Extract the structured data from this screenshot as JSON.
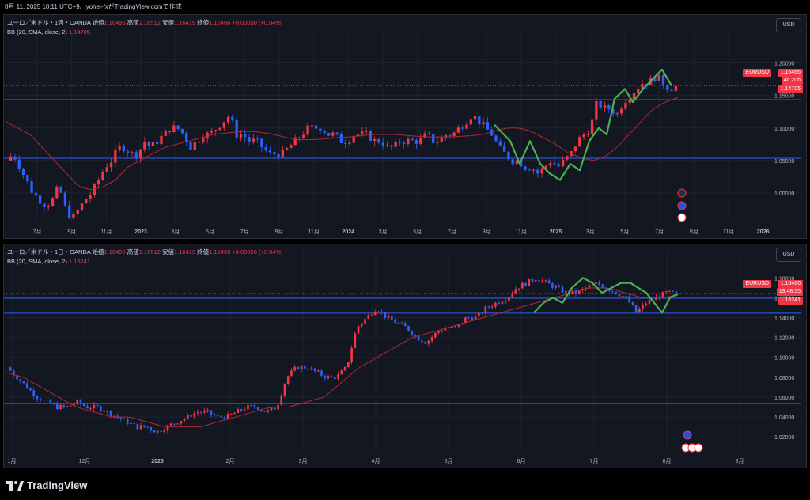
{
  "header": {
    "text": "8月 11, 2025 10:11 UTC+9、yohei-fxがTradingView.comで作成"
  },
  "brand": {
    "name": "TradingView",
    "icon": "tradingview-logo-icon"
  },
  "colors": {
    "up": "#f23645",
    "down": "#2962ff",
    "bb_mid": "#b22833",
    "level": "#2962ff",
    "wave": "#4caf50"
  },
  "panes": [
    {
      "symbol_line": "ユーロ／米ドル・1週・OANDA",
      "open_label": "始値",
      "open": "1.16496",
      "high_label": "高値",
      "high": "1.16512",
      "low_label": "安値",
      "low": "1.16419",
      "close_label": "終値",
      "close": "1.16466",
      "change": "+0.00050 (+0.04%)",
      "bb_label": "BB (20, SMA, close, 2)",
      "bb_value": "1.14705",
      "currency": "USD",
      "price_ticks": [
        "1.20000",
        "1.15000",
        "1.10000",
        "1.05000",
        "1.00000"
      ],
      "time_ticks": [
        "7月",
        "9月",
        "11月",
        "2023",
        "3月",
        "5月",
        "7月",
        "9月",
        "11月",
        "2024",
        "3月",
        "5月",
        "7月",
        "9月",
        "11月",
        "2025",
        "3月",
        "5月",
        "7月",
        "9月",
        "11月",
        "2026"
      ],
      "badges": {
        "symbol": "EURUSD",
        "price": "1.16466",
        "countdown": "4d 20h",
        "bb": "1.14705"
      },
      "icons": [
        "flash-event-icon",
        "eu-flag-icon",
        "us-flag-icon"
      ],
      "chart_data": {
        "type": "candlestick",
        "ylim": [
          0.955,
          1.225
        ],
        "levels": [
          1.1435,
          1.0535
        ],
        "close_path": [
          1.05,
          1.06,
          1.04,
          1.02,
          1.0,
          0.99,
          0.98,
          0.99,
          1.01,
          0.975,
          0.96,
          0.975,
          0.99,
          1.0,
          1.02,
          1.04,
          1.05,
          1.07,
          1.07,
          1.06,
          1.06,
          1.08,
          1.07,
          1.08,
          1.09,
          1.1,
          1.1,
          1.09,
          1.07,
          1.08,
          1.09,
          1.09,
          1.1,
          1.11,
          1.12,
          1.09,
          1.09,
          1.08,
          1.08,
          1.07,
          1.06,
          1.06,
          1.06,
          1.07,
          1.08,
          1.09,
          1.1,
          1.1,
          1.1,
          1.09,
          1.09,
          1.08,
          1.08,
          1.09,
          1.09,
          1.09,
          1.08,
          1.08,
          1.07,
          1.07,
          1.08,
          1.08,
          1.08,
          1.08,
          1.09,
          1.08,
          1.08,
          1.09,
          1.09,
          1.1,
          1.11,
          1.12,
          1.11,
          1.1,
          1.09,
          1.07,
          1.06,
          1.05,
          1.05,
          1.04,
          1.04,
          1.03,
          1.04,
          1.05,
          1.04,
          1.05,
          1.06,
          1.08,
          1.09,
          1.1,
          1.14,
          1.13,
          1.13,
          1.12,
          1.14,
          1.15,
          1.16,
          1.17,
          1.17,
          1.18,
          1.17,
          1.16,
          1.16465
        ],
        "bb_mid_path": [
          1.11,
          1.1,
          1.09,
          1.07,
          1.05,
          1.03,
          1.01,
          1.005,
          1.01,
          1.02,
          1.04,
          1.05,
          1.06,
          1.07,
          1.075,
          1.08,
          1.085,
          1.09,
          1.092,
          1.094,
          1.095,
          1.093,
          1.09,
          1.085,
          1.082,
          1.082,
          1.083,
          1.085,
          1.086,
          1.088,
          1.09,
          1.09,
          1.09,
          1.088,
          1.087,
          1.086,
          1.086,
          1.087,
          1.088,
          1.09,
          1.095,
          1.1,
          1.1,
          1.095,
          1.085,
          1.075,
          1.062,
          1.055,
          1.05,
          1.055,
          1.07,
          1.09,
          1.11,
          1.13,
          1.14,
          1.14705
        ]
      }
    },
    {
      "symbol_line": "ユーロ／米ドル・1日・OANDA",
      "open_label": "始値",
      "open": "1.16496",
      "high_label": "高値",
      "high": "1.16512",
      "low_label": "安値",
      "low": "1.16419",
      "close_label": "終値",
      "close": "1.16466",
      "change": "+0.00050 (+0.04%)",
      "bb_label": "BB (20, SMA, close, 2)",
      "bb_value": "1.16241",
      "currency": "USD",
      "price_ticks": [
        "1.18000",
        "1.16000",
        "1.14000",
        "1.12000",
        "1.10000",
        "1.08000",
        "1.06000",
        "1.04000",
        "1.02000"
      ],
      "time_ticks": [
        "1月",
        "12月",
        "2025",
        "2月",
        "3月",
        "4月",
        "5月",
        "6月",
        "7月",
        "8月",
        "9月"
      ],
      "badges": {
        "symbol": "EURUSD",
        "price": "1.16466",
        "countdown": "19:48:55",
        "bb": "1.16241"
      },
      "icons": [
        "eu-flag-icon",
        "us-flag-icon",
        "us-flag-icon",
        "us-flag-icon"
      ],
      "chart_data": {
        "type": "candlestick",
        "ylim": [
          1.005,
          1.193
        ],
        "levels": [
          1.1595,
          1.1445,
          1.0535
        ],
        "close_path": [
          1.09,
          1.08,
          1.07,
          1.06,
          1.055,
          1.05,
          1.05,
          1.055,
          1.05,
          1.05,
          1.045,
          1.04,
          1.035,
          1.03,
          1.03,
          1.025,
          1.03,
          1.035,
          1.04,
          1.045,
          1.045,
          1.04,
          1.04,
          1.045,
          1.05,
          1.05,
          1.045,
          1.05,
          1.08,
          1.09,
          1.09,
          1.085,
          1.08,
          1.08,
          1.09,
          1.13,
          1.14,
          1.15,
          1.14,
          1.135,
          1.13,
          1.12,
          1.115,
          1.125,
          1.13,
          1.13,
          1.14,
          1.14,
          1.15,
          1.155,
          1.16,
          1.17,
          1.175,
          1.18,
          1.175,
          1.17,
          1.165,
          1.165,
          1.17,
          1.175,
          1.17,
          1.165,
          1.16,
          1.145,
          1.155,
          1.16,
          1.165,
          1.16466
        ],
        "bb_mid_path": [
          1.085,
          1.08,
          1.07,
          1.06,
          1.05,
          1.045,
          1.04,
          1.04,
          1.035,
          1.03,
          1.03,
          1.03,
          1.035,
          1.04,
          1.045,
          1.05,
          1.05,
          1.055,
          1.06,
          1.075,
          1.09,
          1.1,
          1.11,
          1.12,
          1.125,
          1.13,
          1.135,
          1.14,
          1.145,
          1.15,
          1.155,
          1.16,
          1.165,
          1.17,
          1.17,
          1.165,
          1.16,
          1.16,
          1.16241
        ]
      }
    }
  ]
}
